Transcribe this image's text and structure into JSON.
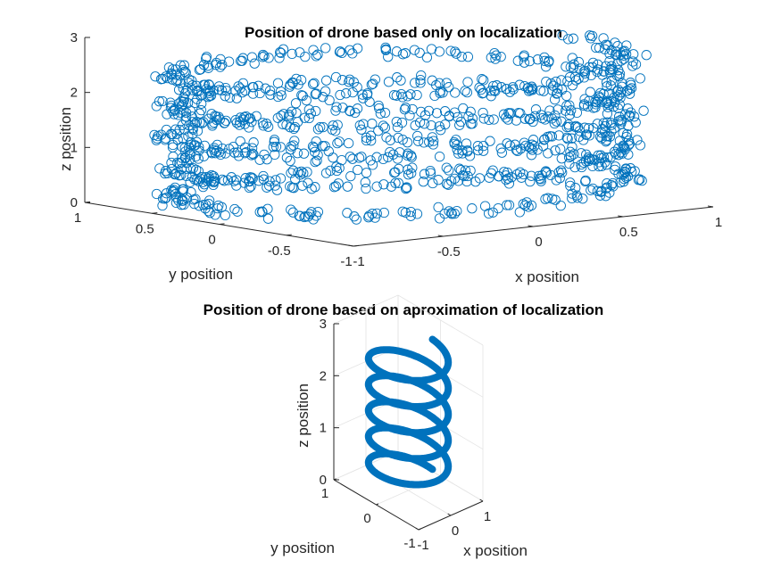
{
  "chart_data": [
    {
      "type": "scatter3d",
      "title": "Position of drone based only on localization",
      "xlabel": "x position",
      "ylabel": "y position",
      "zlabel": "z position",
      "xlim": [
        -1,
        1
      ],
      "ylim": [
        -1,
        1
      ],
      "zlim": [
        0,
        3
      ],
      "x_ticks": [
        "-1",
        "-0.5",
        "0",
        "0.5",
        "1"
      ],
      "y_ticks": [
        "-1",
        "-0.5",
        "0",
        "0.5",
        "1"
      ],
      "z_ticks": [
        "0",
        "1",
        "2",
        "3"
      ],
      "grid": false,
      "marker": "circle",
      "series_color": "#0072BD",
      "helix": {
        "radius": 1,
        "turns": 5,
        "z_start": 0,
        "z_end": 2.7,
        "noise": 0.08
      }
    },
    {
      "type": "line3d",
      "title": "Position of drone based on aproximation of localization",
      "xlabel": "x position",
      "ylabel": "y position",
      "zlabel": "z position",
      "xlim": [
        -1,
        1
      ],
      "ylim": [
        -1,
        1
      ],
      "zlim": [
        0,
        3
      ],
      "x_ticks": [
        "-1",
        "0",
        "1"
      ],
      "y_ticks": [
        "-1",
        "0",
        "1"
      ],
      "z_ticks": [
        "0",
        "1",
        "2",
        "3"
      ],
      "grid": true,
      "series_color": "#0072BD",
      "helix": {
        "radius": 0.75,
        "turns": 5,
        "z_start": 0.2,
        "z_end": 2.7
      }
    }
  ]
}
